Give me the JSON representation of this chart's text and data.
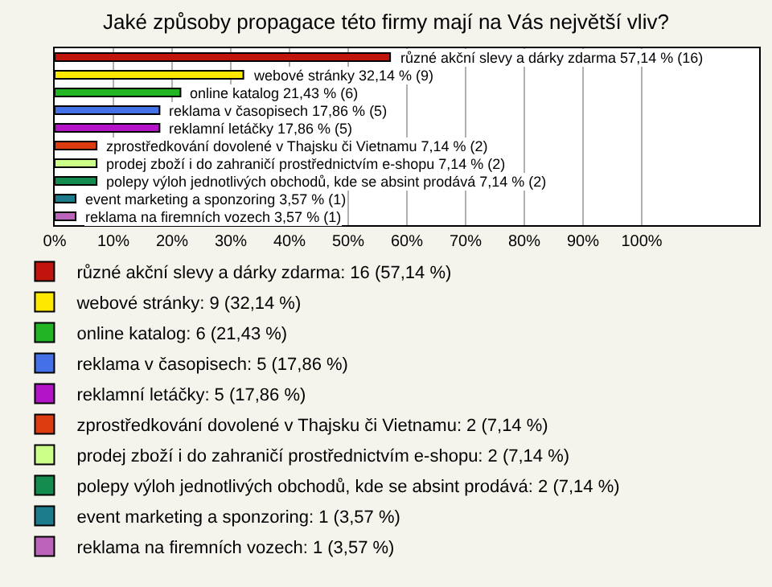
{
  "chart_data": {
    "type": "bar",
    "orientation": "horizontal",
    "title": "Jaké způsoby propagace této firmy mají na Vás největší vliv?",
    "categories": [
      null,
      null,
      null,
      null,
      null,
      null,
      null,
      null,
      null,
      null
    ],
    "series": [
      {
        "name": "různé akční slevy a dárky zdarma: 16 (57,14 %)",
        "color": "#c0140c",
        "values": [
          57.14,
          null,
          null,
          null,
          null,
          null,
          null,
          null,
          null,
          null
        ],
        "value_labels": [
          "různé akční slevy a dárky zdarma 57,14 % (16)",
          null,
          null,
          null,
          null,
          null,
          null,
          null,
          null,
          null
        ]
      },
      {
        "name": "webové stránky: 9 (32,14 %)",
        "color": "#ffe800",
        "values": [
          null,
          32.14,
          null,
          null,
          null,
          null,
          null,
          null,
          null,
          null
        ],
        "value_labels": [
          null,
          "webové stránky 32,14 % (9)",
          null,
          null,
          null,
          null,
          null,
          null,
          null,
          null
        ]
      },
      {
        "name": "online katalog: 6 (21,43 %)",
        "color": "#22b422",
        "values": [
          null,
          null,
          21.43,
          null,
          null,
          null,
          null,
          null,
          null,
          null
        ],
        "value_labels": [
          null,
          null,
          "online katalog 21,43 % (6)",
          null,
          null,
          null,
          null,
          null,
          null,
          null
        ]
      },
      {
        "name": "reklama v časopisech: 5 (17,86 %)",
        "color": "#4470e8",
        "values": [
          null,
          null,
          null,
          17.86,
          null,
          null,
          null,
          null,
          null,
          null
        ],
        "value_labels": [
          null,
          null,
          null,
          "reklama v časopisech 17,86 % (5)",
          null,
          null,
          null,
          null,
          null,
          null
        ]
      },
      {
        "name": "reklamní letáčky: 5 (17,86 %)",
        "color": "#b414c8",
        "values": [
          null,
          null,
          null,
          null,
          17.86,
          null,
          null,
          null,
          null,
          null
        ],
        "value_labels": [
          null,
          null,
          null,
          null,
          "reklamní letáčky 17,86 % (5)",
          null,
          null,
          null,
          null,
          null
        ]
      },
      {
        "name": "zprostředkování dovolené v Thajsku či Vietnamu: 2 (7,14 %)",
        "color": "#dc3c10",
        "values": [
          null,
          null,
          null,
          null,
          null,
          7.14,
          null,
          null,
          null,
          null
        ],
        "value_labels": [
          null,
          null,
          null,
          null,
          null,
          "zprostředkování dovolené v Thajsku či Vietnamu 7,14 % (2)",
          null,
          null,
          null,
          null
        ]
      },
      {
        "name": "prodej zboží i do zahraničí prostřednictvím e-shopu: 2 (7,14 %)",
        "color": "#ccff88",
        "values": [
          null,
          null,
          null,
          null,
          null,
          null,
          7.14,
          null,
          null,
          null
        ],
        "value_labels": [
          null,
          null,
          null,
          null,
          null,
          null,
          "prodej zboží i do zahraničí prostřednictvím e-shopu 7,14 % (2)",
          null,
          null,
          null
        ]
      },
      {
        "name": "polepy výloh jednotlivých obchodů, kde se absint prodává: 2 (7,14 %)",
        "color": "#148c50",
        "values": [
          null,
          null,
          null,
          null,
          null,
          null,
          null,
          7.14,
          null,
          null
        ],
        "value_labels": [
          null,
          null,
          null,
          null,
          null,
          null,
          null,
          "polepy výloh jednotlivých obchodů, kde se absint prodává 7,14 % (2)",
          null,
          null
        ]
      },
      {
        "name": "event marketing a sponzoring: 1 (3,57 %)",
        "color": "#1c7c8c",
        "values": [
          null,
          null,
          null,
          null,
          null,
          null,
          null,
          null,
          3.57,
          null
        ],
        "value_labels": [
          null,
          null,
          null,
          null,
          null,
          null,
          null,
          null,
          "event marketing a sponzoring 3,57 % (1)",
          null
        ]
      },
      {
        "name": "reklama na firemních vozech: 1 (3,57 %)",
        "color": "#bc64bc",
        "values": [
          null,
          null,
          null,
          null,
          null,
          null,
          null,
          null,
          null,
          3.57
        ],
        "value_labels": [
          null,
          null,
          null,
          null,
          null,
          null,
          null,
          null,
          null,
          "reklama na firemních vozech 3,57 % (1)"
        ]
      }
    ],
    "xlim": [
      0,
      120
    ],
    "xticks": [
      {
        "value": 0,
        "label": "0%"
      },
      {
        "value": 10,
        "label": "10%"
      },
      {
        "value": 20,
        "label": "20%"
      },
      {
        "value": 30,
        "label": "30%"
      },
      {
        "value": 40,
        "label": "40%"
      },
      {
        "value": 50,
        "label": "50%"
      },
      {
        "value": 60,
        "label": "60%"
      },
      {
        "value": 70,
        "label": "70%"
      },
      {
        "value": 80,
        "label": "80%"
      },
      {
        "value": 90,
        "label": "90%"
      },
      {
        "value": 100,
        "label": "100%"
      }
    ],
    "grid": "x",
    "legend": "bottom",
    "tick_labels": "x"
  }
}
